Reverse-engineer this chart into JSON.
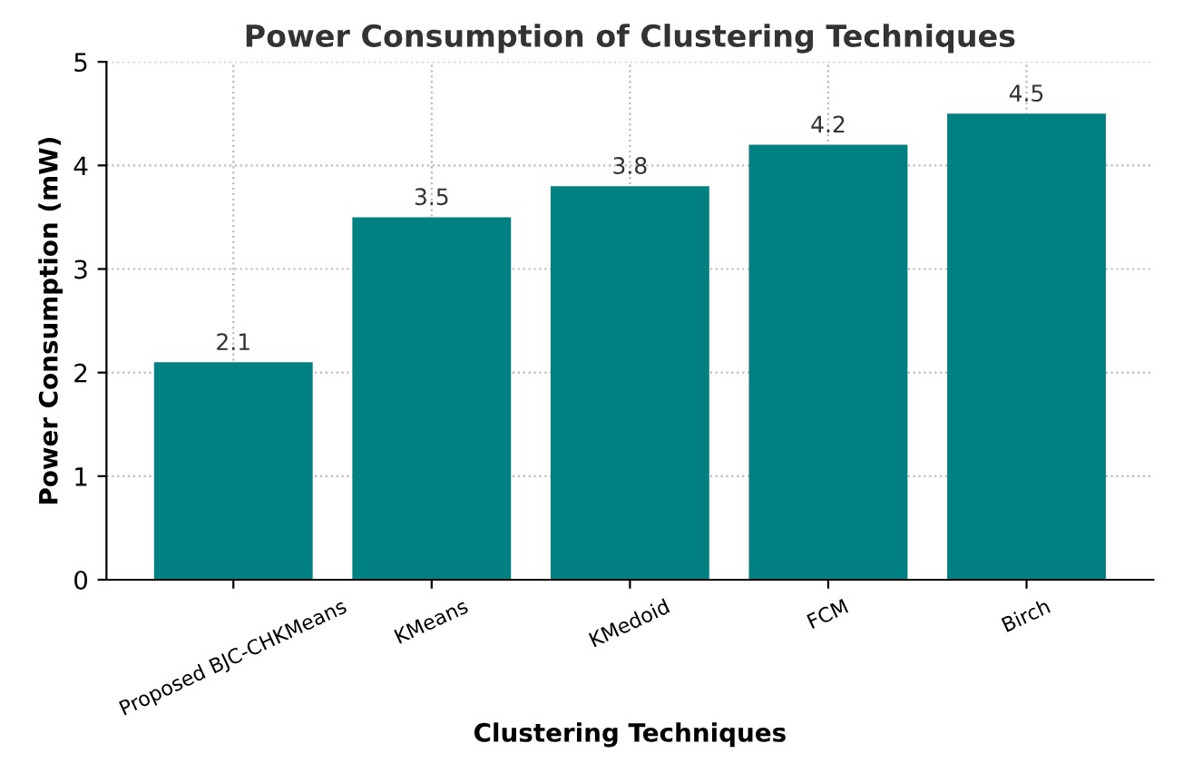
{
  "chart_data": {
    "type": "bar",
    "title": "Power Consumption of Clustering Techniques",
    "xlabel": "Clustering Techniques",
    "ylabel": "Power Consumption (mW)",
    "categories": [
      "Proposed BJC-CHKMeans",
      "KMeans",
      "KMedoid",
      "FCM",
      "Birch"
    ],
    "values": [
      2.1,
      3.5,
      3.8,
      4.2,
      4.5
    ],
    "color": "#008080",
    "data_labels": true,
    "ylim": [
      0,
      5
    ],
    "yticks": [
      0,
      1,
      2,
      3,
      4,
      5
    ],
    "grid": true
  }
}
